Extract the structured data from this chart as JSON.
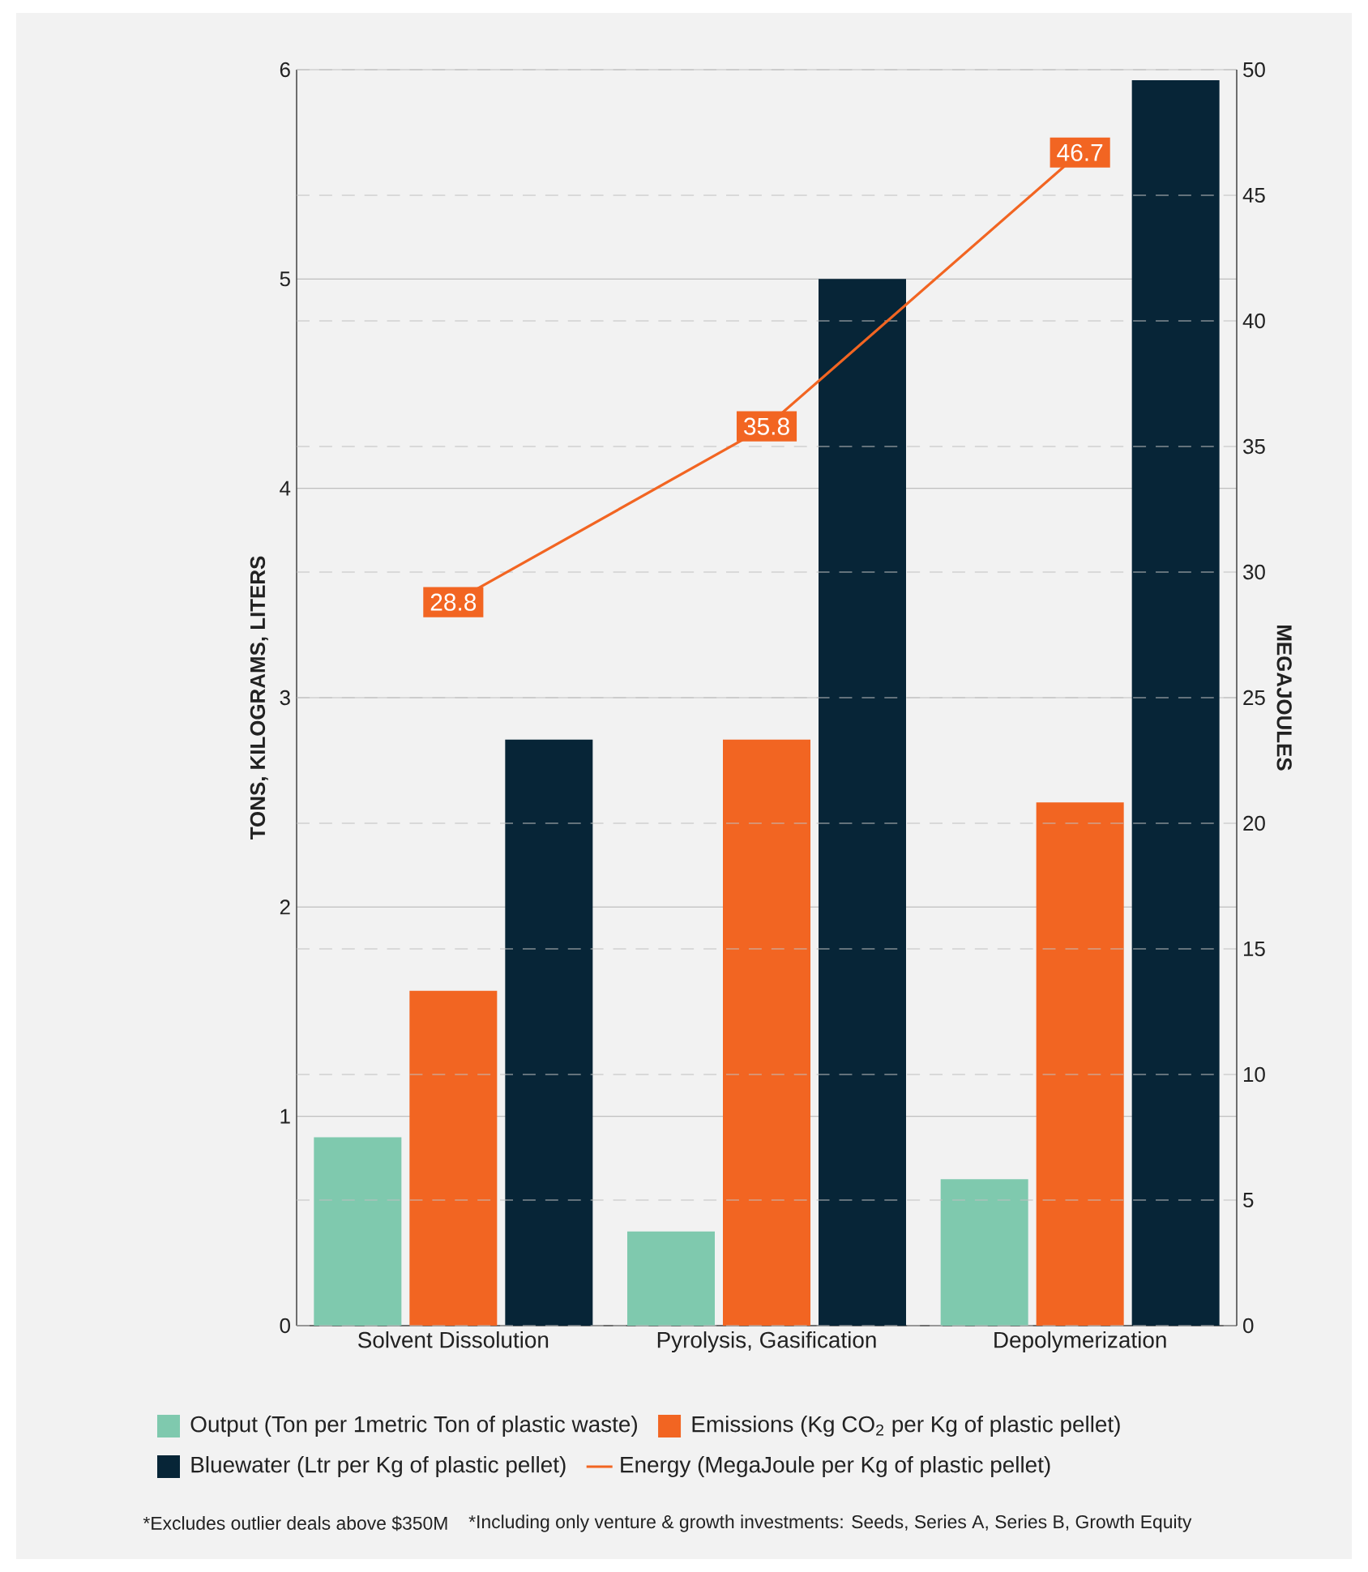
{
  "chart_data": {
    "type": "bar",
    "categories": [
      "Solvent Dissolution",
      "Pyrolysis, Gasification",
      "Depolymerization"
    ],
    "ylabel": "TONS, KILOGRAMS, LITERS",
    "y2label": "MEGAJOULES",
    "ylim": [
      0,
      6
    ],
    "yticks": [
      0,
      1,
      2,
      3,
      4,
      5,
      6
    ],
    "y2lim": [
      0,
      50
    ],
    "y2ticks": [
      0,
      5,
      10,
      15,
      20,
      25,
      30,
      35,
      40,
      45,
      50
    ],
    "grid": true,
    "legend": "bottom",
    "annotations": [
      "*Excludes outlier deals above $350M",
      "*Including only venture & growth investments: Seeds, Series A, Series B, Growth Equity"
    ],
    "series": [
      {
        "name": "Output (Ton per 1metric Ton of plastic waste)",
        "color": "#7fc9ae",
        "values": [
          0.9,
          0.45,
          0.7
        ]
      },
      {
        "name": "Emissions (Kg CO$_{2}$ per Kg of plastic pellet)",
        "color": "#f26522",
        "values": [
          1.6,
          2.8,
          2.5
        ]
      },
      {
        "name": "Bluewater (Ltr per Kg of plastic pellet)",
        "color": "#072537",
        "values": [
          2.8,
          5.0,
          5.95
        ]
      },
      {
        "name": "Energy (MegaJoule per Kg of plastic pellet)",
        "type": "line",
        "axis": "y2",
        "marker": "square",
        "color": "#f26522",
        "values": [
          28.8,
          35.8,
          46.7
        ],
        "value_labels": [
          "28.8",
          "35.8",
          "46.7"
        ]
      }
    ]
  }
}
